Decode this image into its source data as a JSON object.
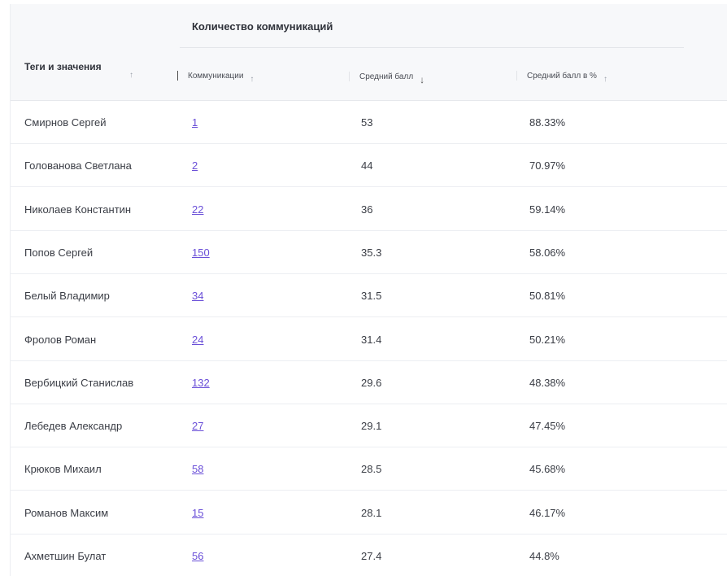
{
  "header": {
    "group": "Количество коммуникаций",
    "col_tags": "Теги и значения",
    "col_comm": "Коммуникации",
    "col_avg": "Средний балл",
    "col_pct": "Средний балл в %",
    "arrow_up": "↑",
    "arrow_down": "↓"
  },
  "rows": [
    {
      "name": "Смирнов Сергей",
      "comm": "1",
      "avg": "53",
      "pct": "88.33%"
    },
    {
      "name": "Голованова Светлана",
      "comm": "2",
      "avg": "44",
      "pct": "70.97%"
    },
    {
      "name": "Николаев Константин",
      "comm": "22",
      "avg": "36",
      "pct": "59.14%"
    },
    {
      "name": "Попов Сергей",
      "comm": "150",
      "avg": "35.3",
      "pct": "58.06%"
    },
    {
      "name": "Белый Владимир",
      "comm": "34",
      "avg": "31.5",
      "pct": "50.81%"
    },
    {
      "name": "Фролов Роман",
      "comm": "24",
      "avg": "31.4",
      "pct": "50.21%"
    },
    {
      "name": "Вербицкий Станислав",
      "comm": "132",
      "avg": "29.6",
      "pct": "48.38%"
    },
    {
      "name": "Лебедев Александр",
      "comm": "27",
      "avg": "29.1",
      "pct": "47.45%"
    },
    {
      "name": "Крюков Михаил",
      "comm": "58",
      "avg": "28.5",
      "pct": "45.68%"
    },
    {
      "name": "Романов Максим",
      "comm": "15",
      "avg": "28.1",
      "pct": "46.17%"
    },
    {
      "name": "Ахметшин Булат",
      "comm": "56",
      "avg": "27.4",
      "pct": "44.8%"
    }
  ]
}
